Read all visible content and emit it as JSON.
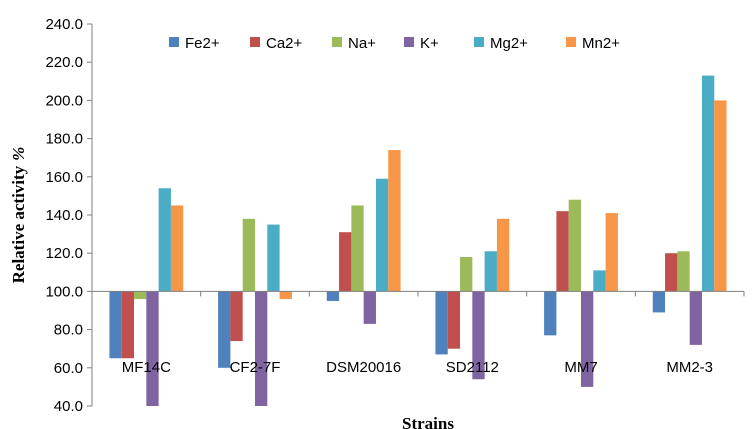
{
  "chart_data": {
    "type": "bar",
    "title": "",
    "xlabel": "Strains",
    "ylabel_text": "Relative activity",
    "ylabel_unit": "%",
    "ylim": [
      40,
      240
    ],
    "baseline": 100,
    "yticks": [
      "40.0",
      "60.0",
      "80.0",
      "100.0",
      "120.0",
      "140.0",
      "160.0",
      "180.0",
      "200.0",
      "220.0",
      "240.0"
    ],
    "ytick_values": [
      40,
      60,
      80,
      100,
      120,
      140,
      160,
      180,
      200,
      220,
      240
    ],
    "categories": [
      "MF14C",
      "CF2-7F",
      "DSM20016",
      "SD2112",
      "MM7",
      "MM2-3"
    ],
    "legend_position": "top",
    "grid": false,
    "series": [
      {
        "name": "Fe2+",
        "color": "#4f81bd",
        "values": [
          65,
          60,
          95,
          67,
          77,
          89
        ]
      },
      {
        "name": "Ca2+",
        "color": "#c0504d",
        "values": [
          65,
          74,
          131,
          70,
          142,
          120
        ]
      },
      {
        "name": "Na+",
        "color": "#9bbb59",
        "values": [
          96,
          138,
          145,
          118,
          148,
          121
        ]
      },
      {
        "name": "K+",
        "color": "#8064a2",
        "values": [
          40,
          40,
          83,
          54,
          50,
          72
        ]
      },
      {
        "name": "Mg2+",
        "color": "#4bacc6",
        "values": [
          154,
          135,
          159,
          121,
          111,
          213
        ]
      },
      {
        "name": "Mn2+",
        "color": "#f79646",
        "values": [
          145,
          96,
          174,
          138,
          141,
          200
        ]
      }
    ]
  }
}
